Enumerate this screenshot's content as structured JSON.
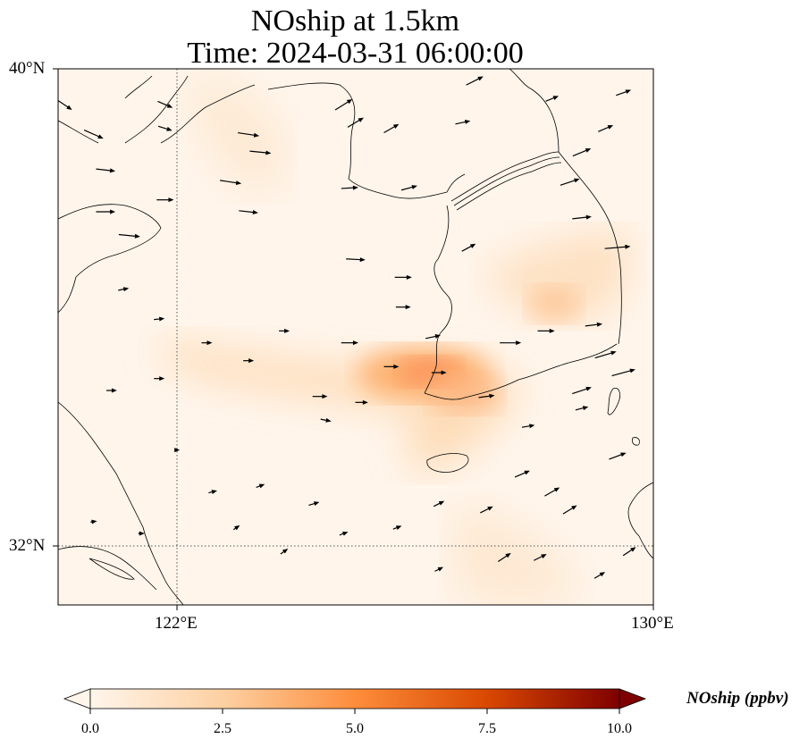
{
  "title": {
    "line1": "NOship at 1.5km",
    "line2": "Time: 2024-03-31 06:00:00"
  },
  "axes": {
    "lat_labels": [
      "40°N",
      "32°N"
    ],
    "lon_labels": [
      "122°E",
      "130°E"
    ],
    "lat_range": [
      31,
      40
    ],
    "lon_range": [
      120,
      130
    ],
    "gridlines": {
      "lat": [
        32
      ],
      "lon": [
        122
      ],
      "style": "dotted"
    }
  },
  "colorbar": {
    "title": "NOship (ppbv)",
    "ticks": [
      "0.0",
      "2.5",
      "5.0",
      "7.5",
      "10.0"
    ],
    "min": 0,
    "max": 10,
    "colormap": [
      "#fff5eb",
      "#fdd0a2",
      "#fd8d3c",
      "#d94801",
      "#7f0000"
    ],
    "extend": "both"
  },
  "field": {
    "name": "NOship",
    "units": "ppbv",
    "hotspots": [
      {
        "lon": 126.1,
        "lat": 34.8,
        "value": 3.6
      },
      {
        "lon": 126.7,
        "lat": 34.7,
        "value": 3.0
      },
      {
        "lon": 125.6,
        "lat": 34.9,
        "value": 2.8
      },
      {
        "lon": 124.0,
        "lat": 35.1,
        "value": 1.8
      },
      {
        "lon": 122.5,
        "lat": 35.4,
        "value": 1.5
      },
      {
        "lon": 126.2,
        "lat": 33.8,
        "value": 1.6
      },
      {
        "lon": 128.4,
        "lat": 36.2,
        "value": 1.6
      },
      {
        "lon": 129.6,
        "lat": 36.8,
        "value": 1.3
      },
      {
        "lon": 122.8,
        "lat": 39.5,
        "value": 0.9
      },
      {
        "lon": 121.2,
        "lat": 37.3,
        "value": 1.0
      },
      {
        "lon": 127.8,
        "lat": 31.6,
        "value": 0.9
      },
      {
        "lon": 125.4,
        "lat": 33.2,
        "value": 1.0
      }
    ]
  },
  "wind_vectors": [
    {
      "lon": 120.1,
      "lat": 39.4,
      "u": 1.5,
      "v": -1.0
    },
    {
      "lon": 120.6,
      "lat": 38.9,
      "u": 1.8,
      "v": -0.8
    },
    {
      "lon": 121.8,
      "lat": 39.4,
      "u": 1.4,
      "v": -0.6
    },
    {
      "lon": 121.8,
      "lat": 39.0,
      "u": 1.3,
      "v": -0.4
    },
    {
      "lon": 123.2,
      "lat": 38.9,
      "u": 2.0,
      "v": -0.3
    },
    {
      "lon": 123.4,
      "lat": 38.6,
      "u": 2.0,
      "v": -0.2
    },
    {
      "lon": 122.9,
      "lat": 38.1,
      "u": 2.0,
      "v": -0.3
    },
    {
      "lon": 123.2,
      "lat": 37.6,
      "u": 1.8,
      "v": -0.2
    },
    {
      "lon": 120.8,
      "lat": 38.3,
      "u": 1.8,
      "v": -0.2
    },
    {
      "lon": 121.8,
      "lat": 37.8,
      "u": 1.6,
      "v": 0.0
    },
    {
      "lon": 120.8,
      "lat": 37.6,
      "u": 1.8,
      "v": 0.0
    },
    {
      "lon": 121.2,
      "lat": 37.2,
      "u": 2.0,
      "v": -0.2
    },
    {
      "lon": 124.8,
      "lat": 39.4,
      "u": 1.6,
      "v": 1.0
    },
    {
      "lon": 125.0,
      "lat": 39.1,
      "u": 1.5,
      "v": 0.9
    },
    {
      "lon": 125.6,
      "lat": 39.0,
      "u": 1.4,
      "v": 0.8
    },
    {
      "lon": 126.8,
      "lat": 39.1,
      "u": 1.4,
      "v": 0.3
    },
    {
      "lon": 127.0,
      "lat": 39.8,
      "u": 1.6,
      "v": 0.8
    },
    {
      "lon": 128.3,
      "lat": 39.5,
      "u": 1.2,
      "v": 0.5
    },
    {
      "lon": 129.5,
      "lat": 39.6,
      "u": 1.4,
      "v": 0.5
    },
    {
      "lon": 129.2,
      "lat": 39.0,
      "u": 1.4,
      "v": 0.6
    },
    {
      "lon": 128.8,
      "lat": 38.6,
      "u": 1.7,
      "v": 0.7
    },
    {
      "lon": 128.6,
      "lat": 38.1,
      "u": 1.8,
      "v": 0.6
    },
    {
      "lon": 128.8,
      "lat": 37.5,
      "u": 1.8,
      "v": 0.2
    },
    {
      "lon": 129.4,
      "lat": 37.0,
      "u": 2.4,
      "v": 0.2
    },
    {
      "lon": 124.9,
      "lat": 38.0,
      "u": 1.6,
      "v": 0.1
    },
    {
      "lon": 125.9,
      "lat": 38.0,
      "u": 1.5,
      "v": 0.4
    },
    {
      "lon": 126.9,
      "lat": 37.0,
      "u": 1.3,
      "v": 0.7
    },
    {
      "lon": 125.0,
      "lat": 36.8,
      "u": 1.8,
      "v": -0.1
    },
    {
      "lon": 125.8,
      "lat": 36.5,
      "u": 1.6,
      "v": 0.0
    },
    {
      "lon": 125.8,
      "lat": 36.0,
      "u": 1.4,
      "v": 0.0
    },
    {
      "lon": 126.3,
      "lat": 35.5,
      "u": 1.4,
      "v": 0.3
    },
    {
      "lon": 127.6,
      "lat": 35.4,
      "u": 2.0,
      "v": 0.0
    },
    {
      "lon": 128.2,
      "lat": 35.6,
      "u": 1.6,
      "v": 0.0
    },
    {
      "lon": 129.0,
      "lat": 35.7,
      "u": 1.6,
      "v": 0.2
    },
    {
      "lon": 129.2,
      "lat": 35.2,
      "u": 2.0,
      "v": 0.6
    },
    {
      "lon": 128.8,
      "lat": 34.6,
      "u": 1.8,
      "v": 0.6
    },
    {
      "lon": 129.5,
      "lat": 34.9,
      "u": 2.2,
      "v": 0.6
    },
    {
      "lon": 124.9,
      "lat": 35.4,
      "u": 1.6,
      "v": 0.0
    },
    {
      "lon": 125.6,
      "lat": 35.0,
      "u": 1.4,
      "v": 0.0
    },
    {
      "lon": 126.4,
      "lat": 34.9,
      "u": 1.4,
      "v": 0.0
    },
    {
      "lon": 124.4,
      "lat": 34.5,
      "u": 1.4,
      "v": 0.0
    },
    {
      "lon": 125.1,
      "lat": 34.4,
      "u": 1.2,
      "v": 0.0
    },
    {
      "lon": 127.2,
      "lat": 34.5,
      "u": 1.5,
      "v": 0.2
    },
    {
      "lon": 124.5,
      "lat": 34.1,
      "u": 1.0,
      "v": -0.2
    },
    {
      "lon": 121.1,
      "lat": 36.3,
      "u": 1.0,
      "v": 0.2
    },
    {
      "lon": 121.7,
      "lat": 35.8,
      "u": 1.0,
      "v": 0.1
    },
    {
      "lon": 122.5,
      "lat": 35.4,
      "u": 1.0,
      "v": 0.0
    },
    {
      "lon": 123.2,
      "lat": 35.1,
      "u": 1.0,
      "v": 0.0
    },
    {
      "lon": 123.8,
      "lat": 35.6,
      "u": 1.0,
      "v": 0.0
    },
    {
      "lon": 120.9,
      "lat": 34.6,
      "u": 1.0,
      "v": 0.0
    },
    {
      "lon": 121.7,
      "lat": 34.8,
      "u": 1.0,
      "v": 0.0
    },
    {
      "lon": 122.0,
      "lat": 33.6,
      "u": 0.5,
      "v": 0.0
    },
    {
      "lon": 122.6,
      "lat": 32.9,
      "u": 0.8,
      "v": 0.2
    },
    {
      "lon": 123.4,
      "lat": 33.0,
      "u": 0.8,
      "v": 0.3
    },
    {
      "lon": 124.3,
      "lat": 32.7,
      "u": 1.0,
      "v": 0.3
    },
    {
      "lon": 120.6,
      "lat": 32.4,
      "u": 0.6,
      "v": 0.1
    },
    {
      "lon": 121.4,
      "lat": 32.2,
      "u": 0.6,
      "v": 0.0
    },
    {
      "lon": 123.0,
      "lat": 32.3,
      "u": 0.6,
      "v": 0.4
    },
    {
      "lon": 123.8,
      "lat": 31.9,
      "u": 0.7,
      "v": 0.5
    },
    {
      "lon": 124.8,
      "lat": 32.2,
      "u": 0.8,
      "v": 0.3
    },
    {
      "lon": 125.7,
      "lat": 32.3,
      "u": 0.8,
      "v": 0.3
    },
    {
      "lon": 126.4,
      "lat": 32.7,
      "u": 1.0,
      "v": 0.5
    },
    {
      "lon": 127.2,
      "lat": 32.6,
      "u": 1.2,
      "v": 0.6
    },
    {
      "lon": 127.8,
      "lat": 33.2,
      "u": 1.4,
      "v": 0.6
    },
    {
      "lon": 128.3,
      "lat": 32.9,
      "u": 1.4,
      "v": 0.8
    },
    {
      "lon": 128.6,
      "lat": 32.6,
      "u": 1.3,
      "v": 0.8
    },
    {
      "lon": 129.4,
      "lat": 33.5,
      "u": 1.6,
      "v": 0.6
    },
    {
      "lon": 127.5,
      "lat": 31.8,
      "u": 1.2,
      "v": 0.8
    },
    {
      "lon": 128.1,
      "lat": 31.8,
      "u": 1.2,
      "v": 0.6
    },
    {
      "lon": 129.6,
      "lat": 31.9,
      "u": 1.2,
      "v": 0.8
    },
    {
      "lon": 129.1,
      "lat": 31.5,
      "u": 1.0,
      "v": 0.6
    },
    {
      "lon": 126.4,
      "lat": 31.6,
      "u": 0.8,
      "v": 0.4
    },
    {
      "lon": 127.9,
      "lat": 34.0,
      "u": 1.2,
      "v": 0.2
    },
    {
      "lon": 128.8,
      "lat": 34.3,
      "u": 1.2,
      "v": 0.3
    }
  ]
}
